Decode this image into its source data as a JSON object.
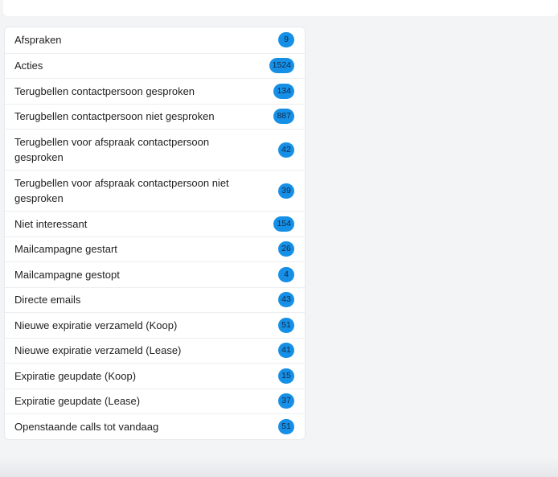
{
  "accent_color": "#1690e6",
  "items": [
    {
      "label": "Afspraken",
      "count": "9"
    },
    {
      "label": "Acties",
      "count": "1524"
    },
    {
      "label": "Terugbellen contactpersoon gesproken",
      "count": "134"
    },
    {
      "label": "Terugbellen contactpersoon niet gesproken",
      "count": "887"
    },
    {
      "label": "Terugbellen voor afspraak contactpersoon gesproken",
      "count": "42"
    },
    {
      "label": "Terugbellen voor afspraak contactpersoon niet gesproken",
      "count": "39"
    },
    {
      "label": "Niet interessant",
      "count": "154"
    },
    {
      "label": "Mailcampagne gestart",
      "count": "26"
    },
    {
      "label": "Mailcampagne gestopt",
      "count": "4"
    },
    {
      "label": "Directe emails",
      "count": "43"
    },
    {
      "label": "Nieuwe expiratie verzameld (Koop)",
      "count": "51"
    },
    {
      "label": "Nieuwe expiratie verzameld (Lease)",
      "count": "41"
    },
    {
      "label": "Expiratie geupdate (Koop)",
      "count": "15"
    },
    {
      "label": "Expiratie geupdate (Lease)",
      "count": "37"
    },
    {
      "label": "Openstaande calls tot vandaag",
      "count": "51"
    }
  ]
}
